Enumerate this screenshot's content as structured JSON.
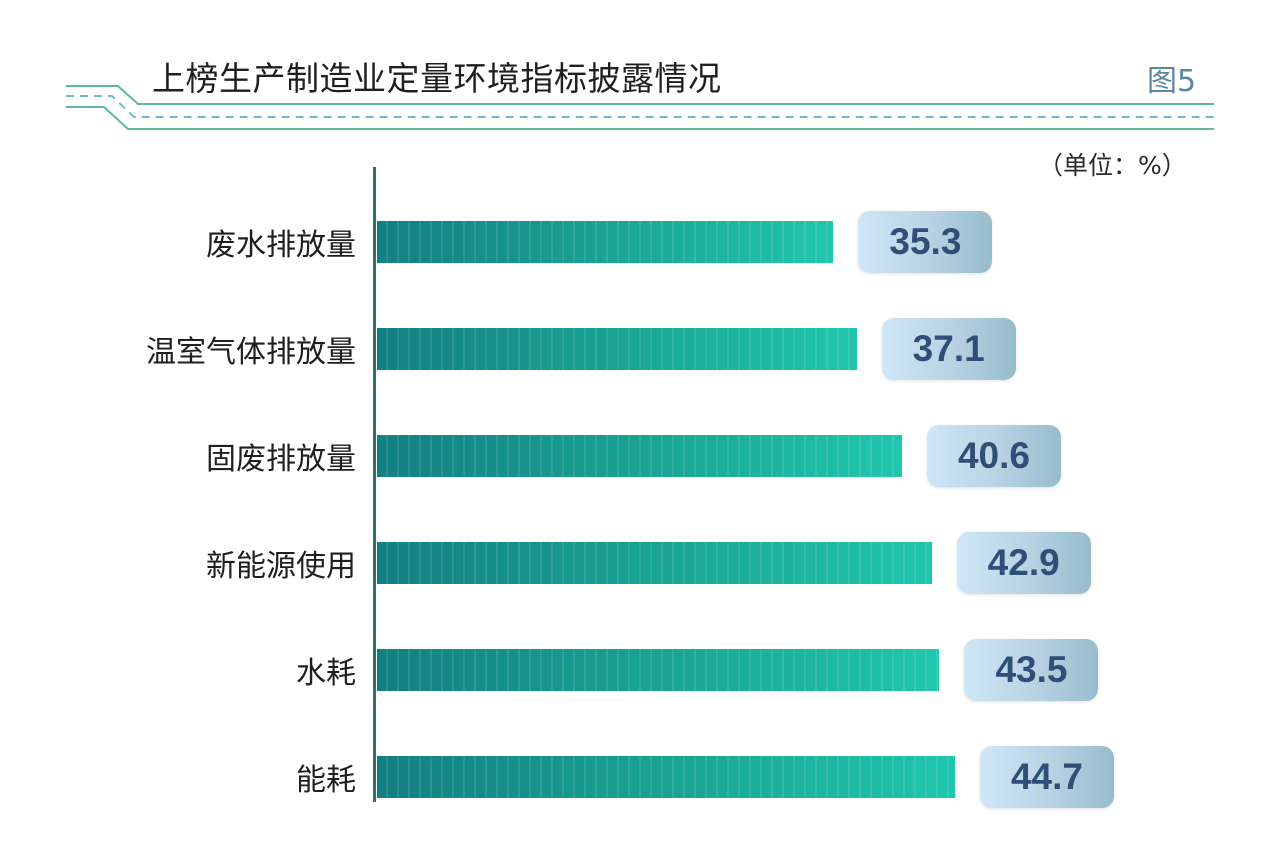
{
  "header": {
    "title": "上榜生产制造业定量环境指标披露情况",
    "figure_label": "图5",
    "unit": "（单位：%）"
  },
  "colors": {
    "bar_start": "#137f82",
    "bar_end": "#20c6ad",
    "label_box": "#b7d2e2",
    "value_text": "#2f4e78",
    "deco_line": "#5fb8a4"
  },
  "chart_data": {
    "type": "bar",
    "orientation": "horizontal",
    "categories": [
      "废水排放量",
      "温室气体排放量",
      "固废排放量",
      "新能源使用",
      "水耗",
      "能耗"
    ],
    "values": [
      35.3,
      37.1,
      40.6,
      42.9,
      43.5,
      44.7
    ],
    "value_labels": [
      "35.3",
      "37.1",
      "40.6",
      "42.9",
      "43.5",
      "44.7"
    ],
    "unit": "%",
    "grid": false,
    "legend": false
  }
}
